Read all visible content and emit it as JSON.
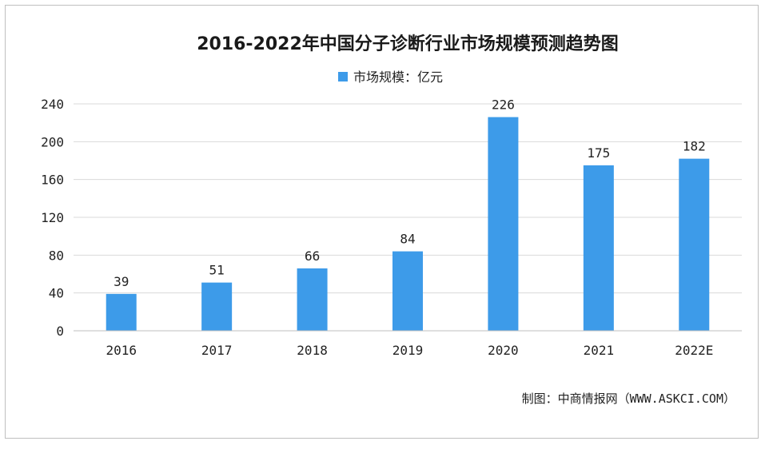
{
  "chart_data": {
    "type": "bar",
    "title": "2016-2022年中国分子诊断行业市场规模预测趋势图",
    "categories": [
      "2016",
      "2017",
      "2018",
      "2019",
      "2020",
      "2021",
      "2022E"
    ],
    "series": [
      {
        "name": "市场规模：亿元",
        "values": [
          39,
          51,
          66,
          84,
          226,
          175,
          182
        ]
      }
    ],
    "ylim": [
      0,
      240
    ],
    "yticks": [
      0,
      40,
      80,
      120,
      160,
      200,
      240
    ],
    "grid": true,
    "legend_position": "top-center",
    "xlabel": "",
    "ylabel": ""
  },
  "colors": {
    "bar": "#3d9be9",
    "grid": "#d9d9d9",
    "axis": "#bfbfbf"
  },
  "source": "制图：中商情报网（WWW.ASKCI.COM）"
}
